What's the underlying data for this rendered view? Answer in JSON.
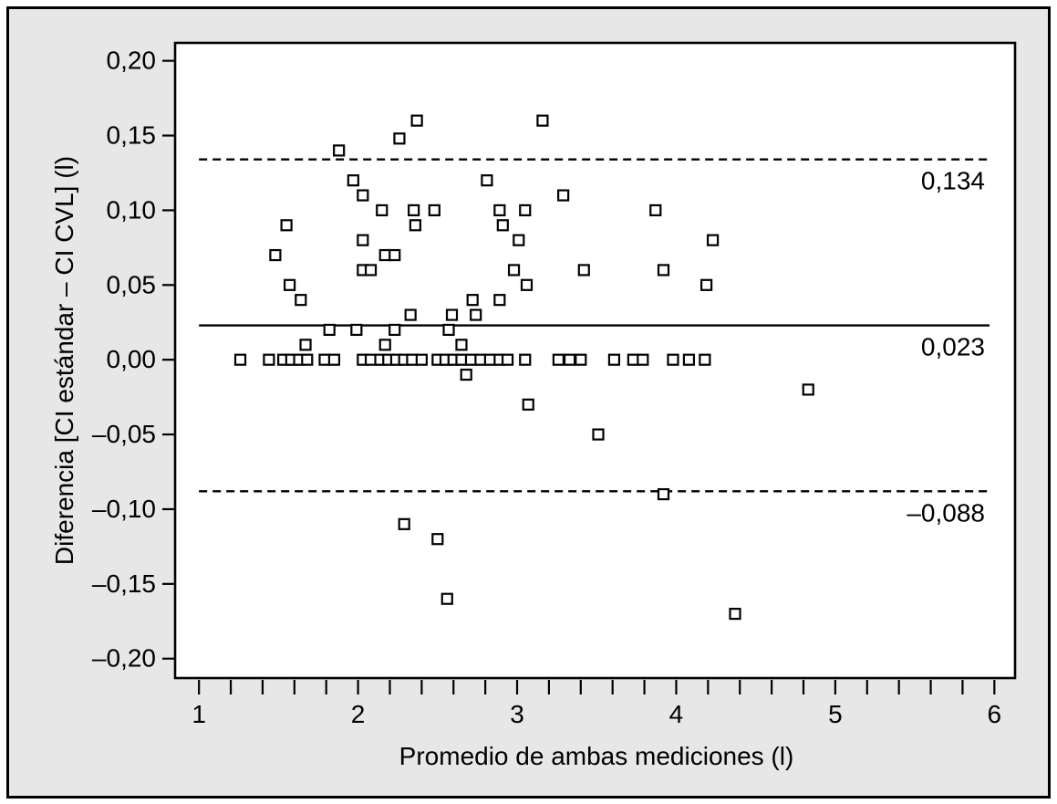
{
  "figure": {
    "background_color": "#e7e7e7",
    "border_color": "#000000",
    "plot_background": "#ffffff",
    "marker_color": "#000000"
  },
  "chart_data": {
    "type": "scatter",
    "title": "",
    "xlabel": "Promedio de ambas mediciones (l)",
    "ylabel": "Diferencia [CI estándar – CI CVL] (l)",
    "xlim": [
      0.85,
      6.13
    ],
    "ylim": [
      -0.213,
      0.212
    ],
    "grid": false,
    "marker": "open-square",
    "x_major_ticks": [
      1,
      2,
      3,
      4,
      5,
      6
    ],
    "x_major_tick_labels": [
      "1",
      "2",
      "3",
      "4",
      "5",
      "6"
    ],
    "x_tick_range": [
      1,
      6
    ],
    "x_minor_tick_step": 0.2,
    "y_ticks": [
      0.2,
      0.15,
      0.1,
      0.05,
      0.0,
      -0.05,
      -0.1,
      -0.15,
      -0.2
    ],
    "y_tick_labels": [
      "0,20",
      "0,15",
      "0,10",
      "0,05",
      "0,00",
      "–0,05",
      "–0,10",
      "–0,15",
      "–0,20"
    ],
    "reference_lines": [
      {
        "id": "upper-limit",
        "value": 0.134,
        "label": "0,134",
        "style": "dashed"
      },
      {
        "id": "mean",
        "value": 0.023,
        "label": "0,023",
        "style": "solid"
      },
      {
        "id": "lower-limit",
        "value": -0.088,
        "label": "–0,088",
        "style": "dashed"
      }
    ],
    "points": [
      [
        2.37,
        0.16
      ],
      [
        3.16,
        0.16
      ],
      [
        2.26,
        0.148
      ],
      [
        1.88,
        0.14
      ],
      [
        1.97,
        0.12
      ],
      [
        2.81,
        0.12
      ],
      [
        2.03,
        0.11
      ],
      [
        3.29,
        0.11
      ],
      [
        2.15,
        0.1
      ],
      [
        2.35,
        0.1
      ],
      [
        2.48,
        0.1
      ],
      [
        2.89,
        0.1
      ],
      [
        3.05,
        0.1
      ],
      [
        3.87,
        0.1
      ],
      [
        1.55,
        0.09
      ],
      [
        2.36,
        0.09
      ],
      [
        2.91,
        0.09
      ],
      [
        2.03,
        0.08
      ],
      [
        3.01,
        0.08
      ],
      [
        4.23,
        0.08
      ],
      [
        1.48,
        0.07
      ],
      [
        2.17,
        0.07
      ],
      [
        2.23,
        0.07
      ],
      [
        2.03,
        0.06
      ],
      [
        2.08,
        0.06
      ],
      [
        2.98,
        0.06
      ],
      [
        3.42,
        0.06
      ],
      [
        3.92,
        0.06
      ],
      [
        1.57,
        0.05
      ],
      [
        3.06,
        0.05
      ],
      [
        4.19,
        0.05
      ],
      [
        1.64,
        0.04
      ],
      [
        2.72,
        0.04
      ],
      [
        2.89,
        0.04
      ],
      [
        2.33,
        0.03
      ],
      [
        2.59,
        0.03
      ],
      [
        2.74,
        0.03
      ],
      [
        1.82,
        0.02
      ],
      [
        1.99,
        0.02
      ],
      [
        2.23,
        0.02
      ],
      [
        2.57,
        0.02
      ],
      [
        1.67,
        0.01
      ],
      [
        2.17,
        0.01
      ],
      [
        2.65,
        0.01
      ],
      [
        1.26,
        0.0
      ],
      [
        1.44,
        0.0
      ],
      [
        1.53,
        0.0
      ],
      [
        1.58,
        0.0
      ],
      [
        1.63,
        0.0
      ],
      [
        1.68,
        0.0
      ],
      [
        1.79,
        0.0
      ],
      [
        1.85,
        0.0
      ],
      [
        2.03,
        0.0
      ],
      [
        2.08,
        0.0
      ],
      [
        2.14,
        0.0
      ],
      [
        2.19,
        0.0
      ],
      [
        2.24,
        0.0
      ],
      [
        2.29,
        0.0
      ],
      [
        2.34,
        0.0
      ],
      [
        2.4,
        0.0
      ],
      [
        2.5,
        0.0
      ],
      [
        2.55,
        0.0
      ],
      [
        2.6,
        0.0
      ],
      [
        2.65,
        0.0
      ],
      [
        2.71,
        0.0
      ],
      [
        2.77,
        0.0
      ],
      [
        2.83,
        0.0
      ],
      [
        2.89,
        0.0
      ],
      [
        2.94,
        0.0
      ],
      [
        3.05,
        0.0
      ],
      [
        3.26,
        0.0
      ],
      [
        3.33,
        0.0
      ],
      [
        3.4,
        0.0
      ],
      [
        3.61,
        0.0
      ],
      [
        3.73,
        0.0
      ],
      [
        3.79,
        0.0
      ],
      [
        3.98,
        0.0
      ],
      [
        4.08,
        0.0
      ],
      [
        4.18,
        0.0
      ],
      [
        2.68,
        -0.01
      ],
      [
        4.83,
        -0.02
      ],
      [
        3.07,
        -0.03
      ],
      [
        3.51,
        -0.05
      ],
      [
        3.92,
        -0.09
      ],
      [
        2.29,
        -0.11
      ],
      [
        2.5,
        -0.12
      ],
      [
        2.56,
        -0.16
      ],
      [
        4.37,
        -0.17
      ]
    ]
  }
}
